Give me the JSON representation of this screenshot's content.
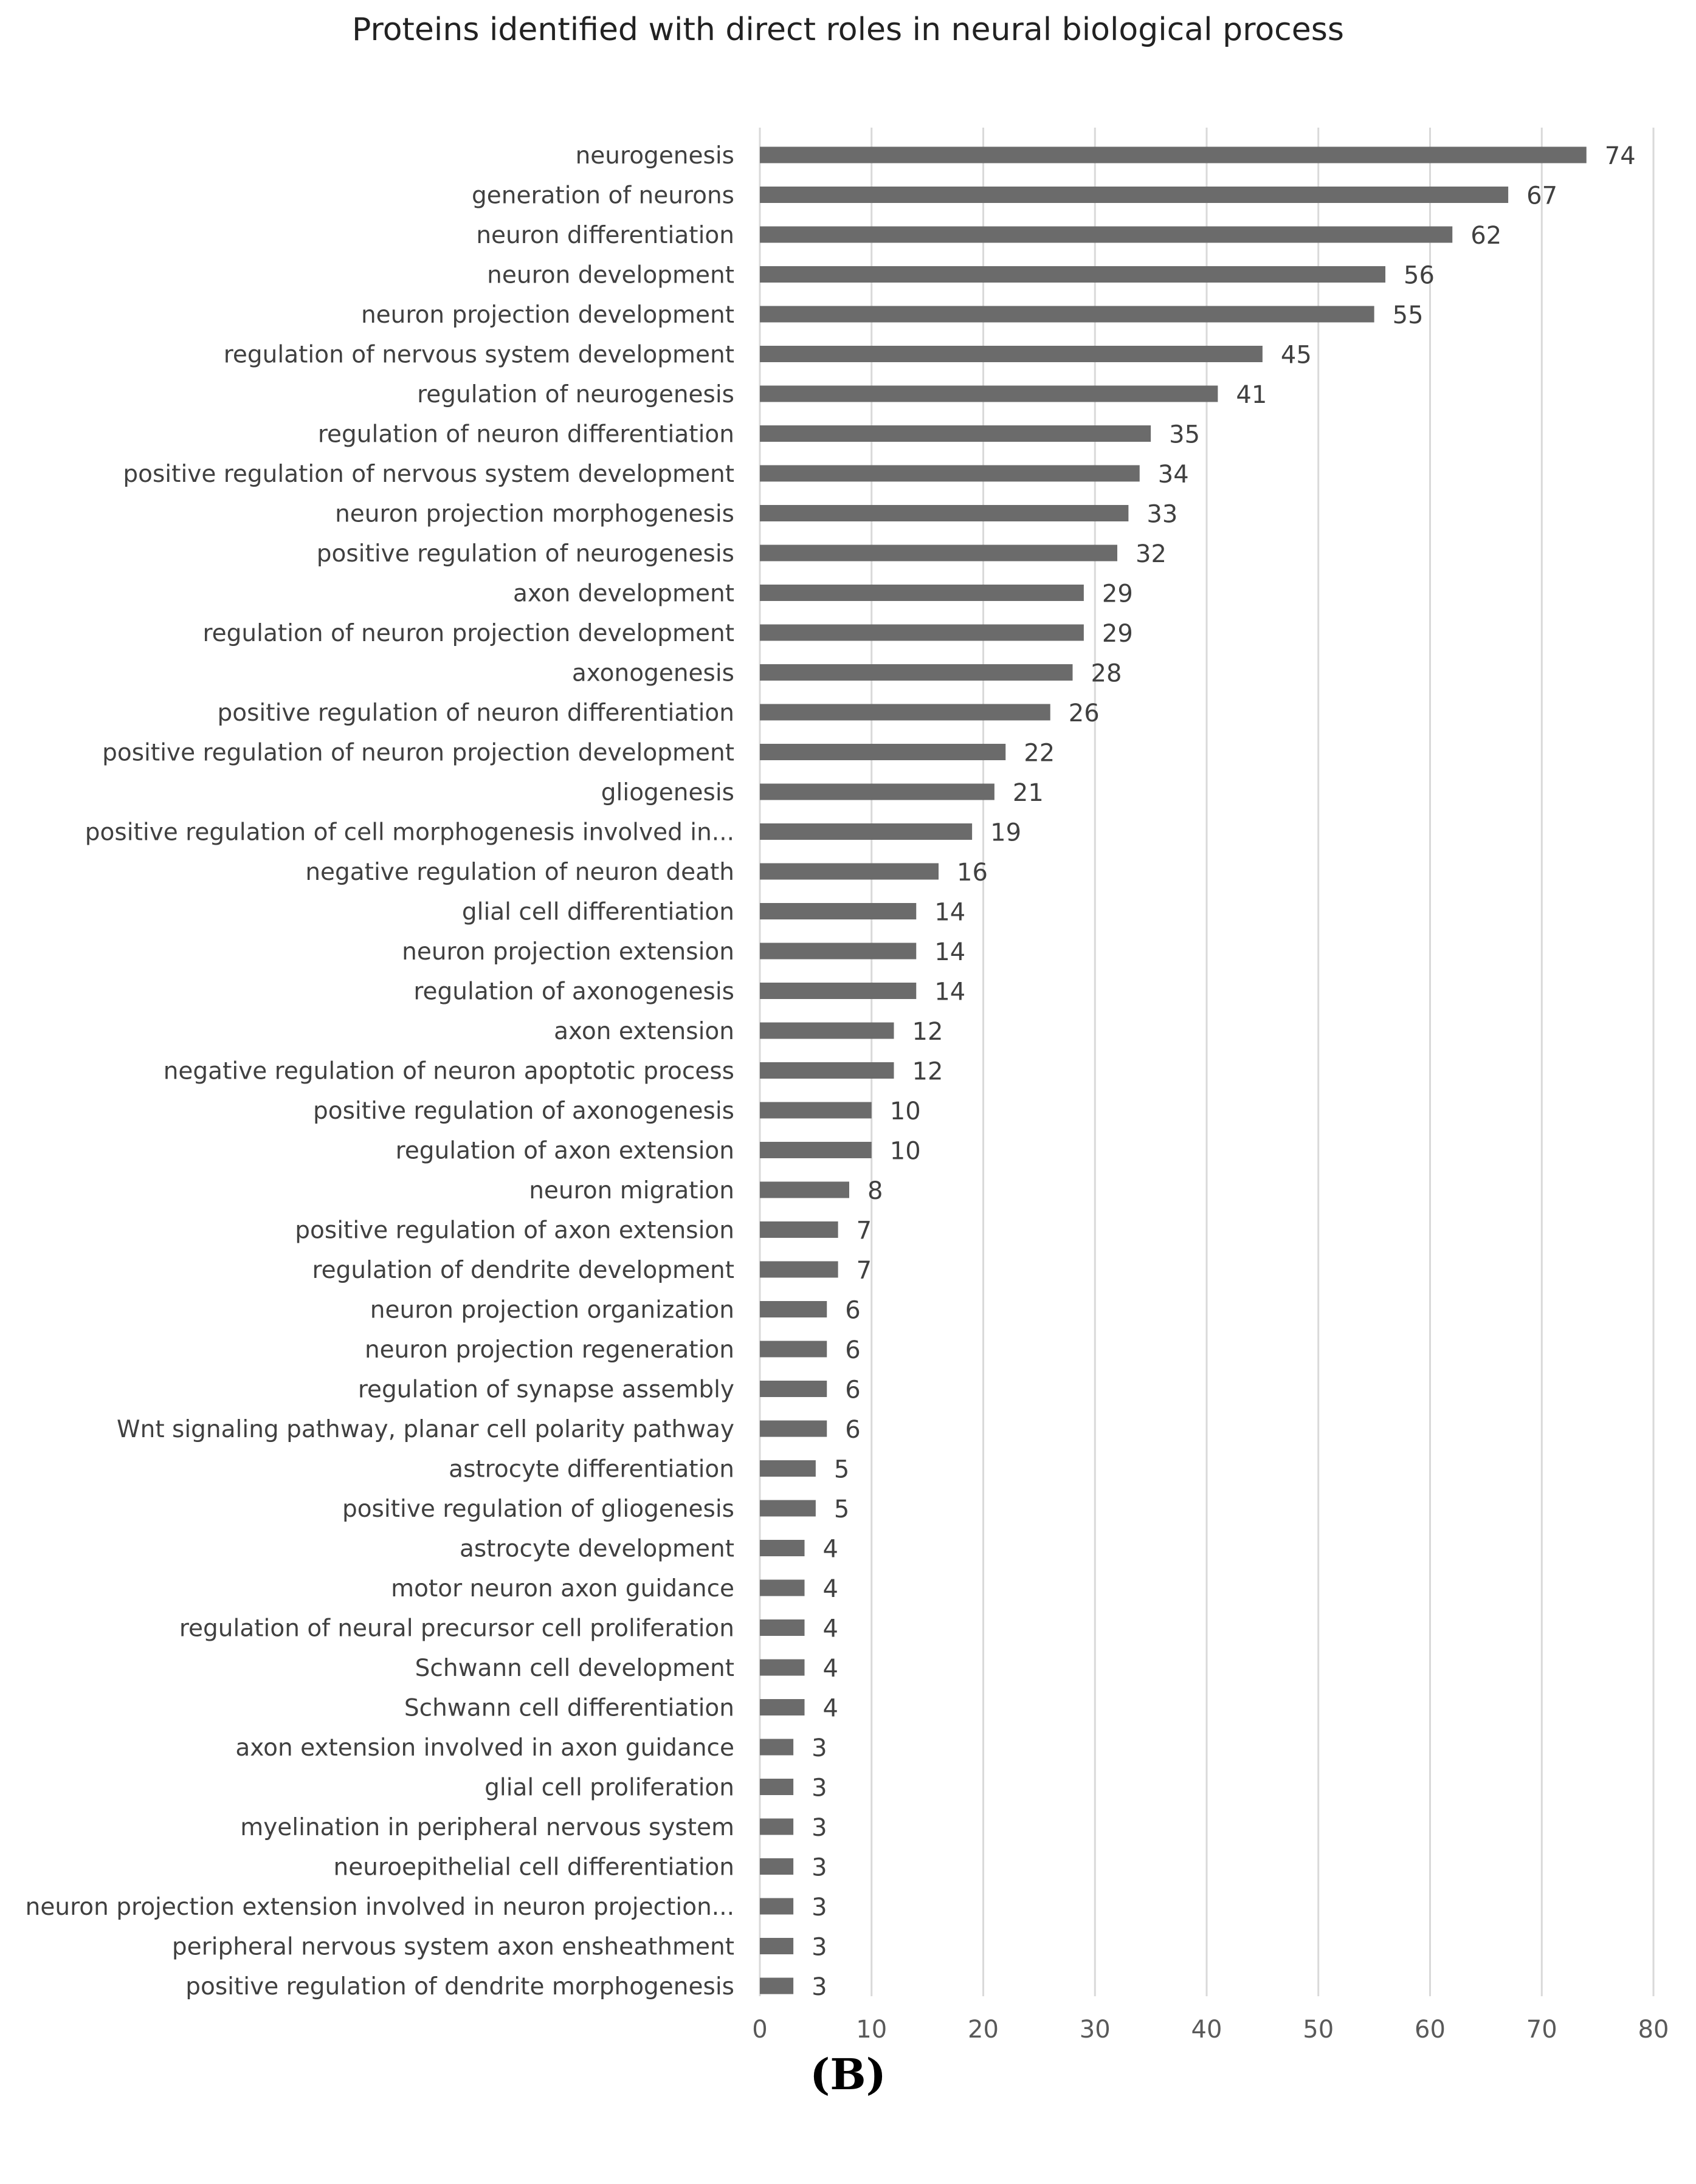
{
  "chart_data": {
    "type": "bar",
    "orientation": "horizontal",
    "title": "Proteins identified with direct roles in neural biological process",
    "xlabel": "",
    "ylabel": "",
    "xlim": [
      0,
      80
    ],
    "x_ticks": [
      "0",
      "10",
      "20",
      "30",
      "40",
      "50",
      "60",
      "70",
      "80"
    ],
    "grid": "vertical gridlines on",
    "legend": "none",
    "bar_color": "#6b6b6b",
    "categories": [
      "neurogenesis",
      "generation of neurons",
      "neuron differentiation",
      "neuron development",
      "neuron projection development",
      "regulation of nervous system development",
      "regulation of neurogenesis",
      "regulation of neuron differentiation",
      "positive regulation of nervous system development",
      "neuron projection morphogenesis",
      "positive regulation of neurogenesis",
      "axon development",
      "regulation of neuron projection development",
      "axonogenesis",
      "positive regulation of neuron differentiation",
      "positive regulation of neuron projection development",
      "gliogenesis",
      "positive regulation of cell morphogenesis involved in...",
      "negative regulation of neuron death",
      "glial cell differentiation",
      "neuron projection extension",
      "regulation of axonogenesis",
      "axon extension",
      "negative regulation of neuron apoptotic process",
      "positive regulation of axonogenesis",
      "regulation of axon extension",
      "neuron migration",
      "positive regulation of axon extension",
      "regulation of dendrite development",
      "neuron projection organization",
      "neuron projection regeneration",
      "regulation of synapse assembly",
      "Wnt signaling pathway, planar cell polarity pathway",
      "astrocyte differentiation",
      "positive regulation of gliogenesis",
      "astrocyte development",
      "motor neuron axon guidance",
      "regulation of neural precursor cell proliferation",
      "Schwann cell development",
      "Schwann cell differentiation",
      "axon extension involved in axon guidance",
      "glial cell proliferation",
      "myelination in peripheral nervous system",
      "neuroepithelial cell differentiation",
      "neuron projection extension involved in neuron projection...",
      "peripheral nervous system axon ensheathment",
      "positive regulation of dendrite morphogenesis"
    ],
    "values": [
      74,
      67,
      62,
      56,
      55,
      45,
      41,
      35,
      34,
      33,
      32,
      29,
      29,
      28,
      26,
      22,
      21,
      19,
      16,
      14,
      14,
      14,
      12,
      12,
      10,
      10,
      8,
      7,
      7,
      6,
      6,
      6,
      6,
      5,
      5,
      4,
      4,
      4,
      4,
      4,
      3,
      3,
      3,
      3,
      3,
      3,
      3
    ]
  },
  "panel_label": "(B)"
}
